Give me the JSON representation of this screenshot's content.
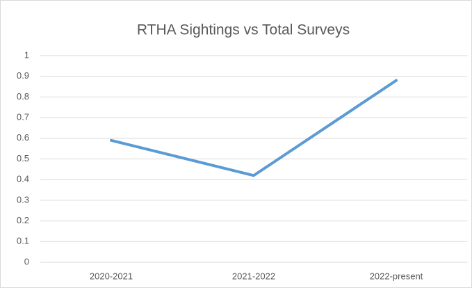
{
  "chart_data": {
    "type": "line",
    "title": "RTHA Sightings vs Total Surveys",
    "categories": [
      "2020-2021",
      "2021-2022",
      "2022-present"
    ],
    "series": [
      {
        "name": "RTHA Sightings vs Total Surveys",
        "color": "#5b9bd5",
        "values": [
          0.59,
          0.42,
          0.88
        ]
      }
    ],
    "ylim": [
      0,
      1
    ],
    "yticks": [
      0,
      0.1,
      0.2,
      0.3,
      0.4,
      0.5,
      0.6,
      0.7,
      0.8,
      0.9,
      1
    ],
    "grid": true
  }
}
